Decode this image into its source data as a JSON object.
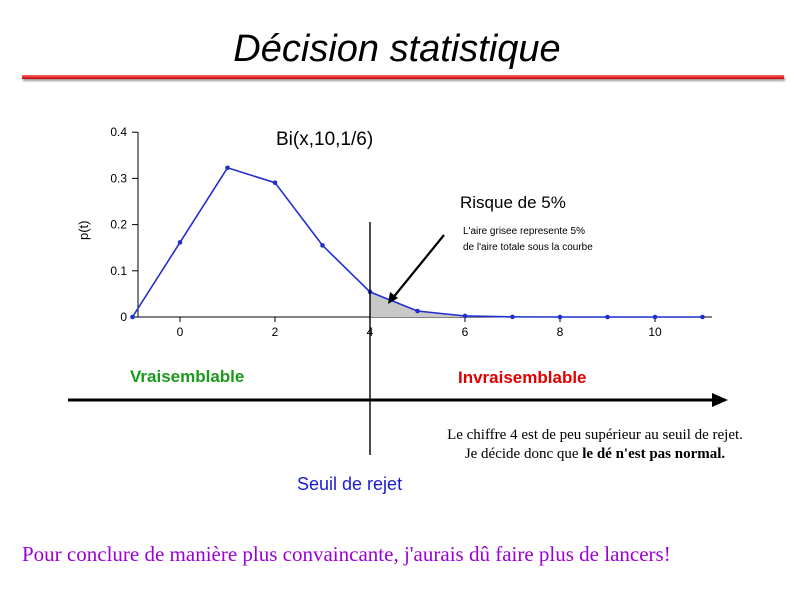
{
  "slide": {
    "title": "Décision statistique",
    "conclusion": "Pour conclure de manière plus convaincante, j'aurais dû faire plus de lancers!",
    "note_line1": "Le chiffre 4 est de peu supérieur au seuil de rejet.",
    "note_line2_prefix": "Je décide donc que ",
    "note_line2_bold": "le dé n'est pas normal."
  },
  "colors": {
    "curve": "#1f2fd0",
    "shade": "#c8c8c8",
    "red_label": "#e00000",
    "green_label": "#1a9a1a",
    "blue_label": "#1a1ad0",
    "conclusion": "#9b00d6",
    "title_rule": "#c80000"
  },
  "chart_data": {
    "type": "line",
    "title": "Bi(x,10,1/6)",
    "ylabel": "p(t)",
    "xlabel": "",
    "x": [
      -1,
      0,
      1,
      2,
      3,
      4,
      5,
      6,
      7,
      8,
      9,
      10,
      11
    ],
    "series": [
      {
        "values": [
          0,
          0.1615,
          0.323,
          0.2907,
          0.155,
          0.0543,
          0.013,
          0.0022,
          0.00025,
          2e-05,
          0,
          0,
          0
        ]
      }
    ],
    "xlim": [
      -1,
      11
    ],
    "ylim": [
      0,
      0.4
    ],
    "xticks": [
      0,
      2,
      4,
      6,
      8,
      10
    ],
    "xtick_labels": [
      "0",
      "2",
      "4",
      "6",
      "8",
      "10"
    ],
    "yticks": [
      0,
      0.1,
      0.2,
      0.3,
      0.4
    ],
    "ytick_labels": [
      "0",
      "0.1",
      "0.2",
      "0.3",
      "0.4"
    ],
    "threshold_x": 4,
    "shaded_from_x": 4,
    "annotations": {
      "risk_title": "Risque de 5%",
      "risk_line1": "L'aire grisee represente 5%",
      "risk_line2": "de l'aire totale sous la courbe",
      "left_region": "Vraisemblable",
      "right_region": "Invraisemblable",
      "threshold_label": "Seuil de rejet"
    }
  }
}
